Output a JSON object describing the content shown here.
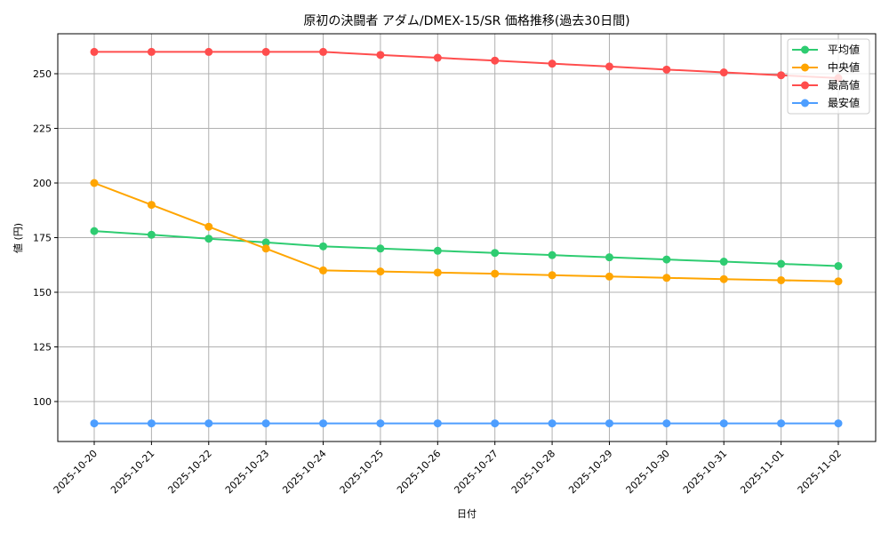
{
  "chart_data": {
    "type": "line",
    "title": "原初の決闘者 アダム/DMEX-15/SR 価格推移(過去30日間)",
    "xlabel": "日付",
    "ylabel": "値 (円)",
    "categories": [
      "2025-10-20",
      "2025-10-21",
      "2025-10-22",
      "2025-10-23",
      "2025-10-24",
      "2025-10-25",
      "2025-10-26",
      "2025-10-27",
      "2025-10-28",
      "2025-10-29",
      "2025-10-30",
      "2025-10-31",
      "2025-11-01",
      "2025-11-02"
    ],
    "yticks": [
      100,
      125,
      150,
      175,
      200,
      225,
      250
    ],
    "ylim": [
      83,
      266
    ],
    "grid": true,
    "legend_position": "upper right",
    "series": [
      {
        "name": "平均値",
        "color": "#2ecc71",
        "values": [
          178,
          176.3,
          174.5,
          172.8,
          171,
          170,
          169,
          168,
          167,
          166,
          165,
          164,
          163,
          162
        ]
      },
      {
        "name": "中央値",
        "color": "#ffa500",
        "values": [
          200,
          190,
          180,
          170,
          160,
          159.5,
          159,
          158.5,
          157.8,
          157.2,
          156.6,
          156,
          155.5,
          155
        ]
      },
      {
        "name": "最高値",
        "color": "#ff4d4d",
        "values": [
          260,
          260,
          260,
          260,
          260,
          258.6,
          257.3,
          256,
          254.6,
          253.3,
          251.9,
          250.6,
          249.3,
          248
        ]
      },
      {
        "name": "最安値",
        "color": "#4d9eff",
        "values": [
          90,
          90,
          90,
          90,
          90,
          90,
          90,
          90,
          90,
          90,
          90,
          90,
          90,
          90
        ]
      }
    ]
  }
}
